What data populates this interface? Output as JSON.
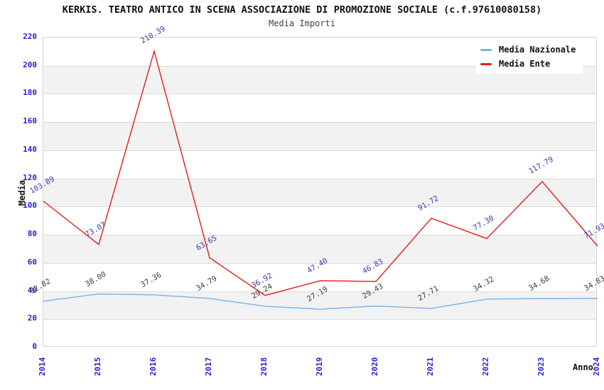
{
  "page": {
    "title": "KERKIS. TEATRO ANTICO IN SCENA ASSOCIAZIONE DI PROMOZIONE SOCIALE (c.f.97610080158)",
    "subtitle": "Media Importi"
  },
  "chart_data": {
    "type": "line",
    "title": "KERKIS. TEATRO ANTICO IN SCENA ASSOCIAZIONE DI PROMOZIONE SOCIALE (c.f.97610080158)",
    "subtitle": "Media Importi",
    "xlabel": "Anno",
    "ylabel": "Media",
    "ylim": [
      0,
      220
    ],
    "ytick_step": 20,
    "yticks": [
      0,
      20,
      40,
      60,
      80,
      100,
      120,
      140,
      160,
      180,
      200,
      220
    ],
    "grid": "horizontal-bands-alternating",
    "legend_position": "top-right",
    "categories": [
      "2014",
      "2015",
      "2016",
      "2017",
      "2018",
      "2019",
      "2020",
      "2021",
      "2022",
      "2023",
      "2024"
    ],
    "series": [
      {
        "name": "Media Nazionale",
        "color": "#7ab3e5",
        "label_color": "#3d3d3d",
        "values": [
          32.82,
          38.0,
          37.36,
          34.79,
          29.24,
          27.19,
          29.43,
          27.71,
          34.32,
          34.68,
          34.83
        ]
      },
      {
        "name": "Media Ente",
        "color": "#e81b1b",
        "label_color": "#3a3aad",
        "values": [
          103.89,
          73.07,
          210.39,
          63.65,
          36.92,
          47.4,
          46.83,
          91.72,
          77.3,
          117.79,
          71.93
        ]
      }
    ],
    "colors": {
      "tick_label": "#2525cf",
      "band_fill": "#f2f2f2",
      "gridline": "#dcdcdc",
      "plot_border": "#d4d4d4",
      "title": "#111111",
      "subtitle": "#444444"
    }
  }
}
